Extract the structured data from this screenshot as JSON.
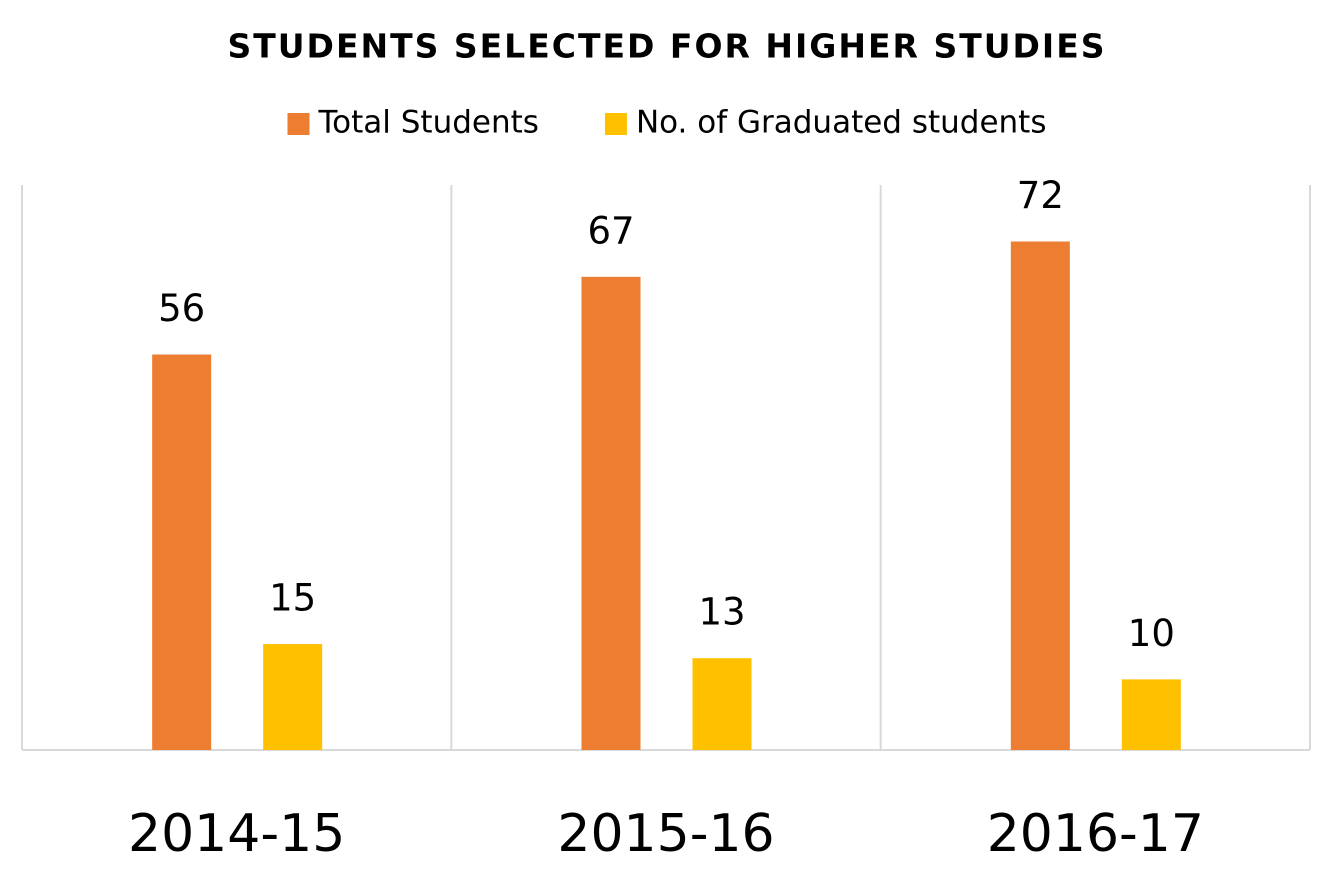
{
  "chart_data": {
    "type": "bar",
    "title": "STUDENTS SELECTED FOR HIGHER STUDIES",
    "categories": [
      "2014-15",
      "2015-16",
      "2016-17"
    ],
    "series": [
      {
        "name": "Total Students",
        "color": "#ed7d31",
        "values": [
          56,
          67,
          72
        ]
      },
      {
        "name": "No. of Graduated students",
        "color": "#ffc000",
        "values": [
          15,
          13,
          10
        ]
      }
    ],
    "ylim": [
      0,
      80
    ],
    "legend": "top"
  }
}
